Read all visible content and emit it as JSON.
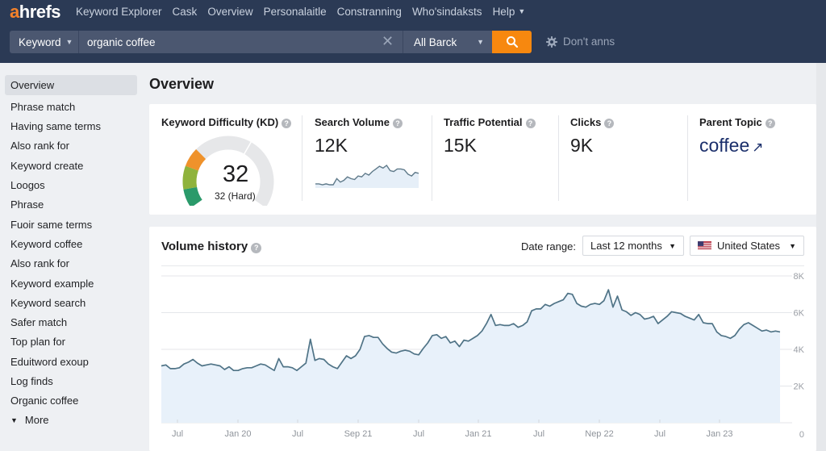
{
  "app": {
    "logo": {
      "accent": "a",
      "rest": "hrefs"
    },
    "nav": [
      {
        "label": "Keyword Explorer"
      },
      {
        "label": "Cask"
      },
      {
        "label": "Overview"
      },
      {
        "label": "Personalaitle"
      },
      {
        "label": "Constranning"
      },
      {
        "label": "Who'sindaksts"
      },
      {
        "label": "Help",
        "has_caret": true
      }
    ],
    "search": {
      "mode": "Keyword",
      "query": "organic coffee",
      "scope": "All Barck",
      "settings_label": "Don't anns"
    },
    "colors": {
      "topbar": "#2b3a55",
      "accent": "#f7880f",
      "link": "#1b2f6b",
      "line": "#4f7386",
      "fill": "#e8f1fa"
    }
  },
  "sidebar": {
    "items": [
      {
        "label": "Overview",
        "active": true
      },
      {
        "label": "Phrase match"
      },
      {
        "label": "Having same terms"
      },
      {
        "label": "Also rank for"
      },
      {
        "label": "Keyword create"
      },
      {
        "label": "Loogos"
      },
      {
        "label": "Phrase"
      },
      {
        "label": "Fuoir same terms"
      },
      {
        "label": "Keyword coffee"
      },
      {
        "label": "Also rank for"
      },
      {
        "label": "Keyword example"
      },
      {
        "label": "Keyword search"
      },
      {
        "label": "Safer match"
      },
      {
        "label": "Top plan for"
      },
      {
        "label": "Eduitword exoup"
      },
      {
        "label": "Log finds"
      },
      {
        "label": "Organic coffee"
      }
    ],
    "more_label": "More"
  },
  "main": {
    "title": "Overview",
    "metrics": {
      "kd": {
        "label": "Keyword Difficulty (KD)",
        "value": "32",
        "caption": "32 (Hard)",
        "score": 32
      },
      "search_volume": {
        "label": "Search Volume",
        "value": "12K"
      },
      "traffic_potential": {
        "label": "Traffic Potential",
        "value": "15K"
      },
      "clicks": {
        "label": "Clicks",
        "value": "9K"
      },
      "parent_topic": {
        "label": "Parent Topic",
        "value": "coffee",
        "arrow": "↗"
      }
    },
    "volume_history": {
      "title": "Volume history",
      "date_range_label": "Date range:",
      "date_range_value": "Last 12 months",
      "country": "United States"
    }
  },
  "chart_data": [
    {
      "type": "area",
      "title": "Volume history",
      "xlabel": "",
      "ylabel": "",
      "ylim": [
        0,
        8000
      ],
      "yticks": [
        0,
        2000,
        4000,
        6000,
        8000
      ],
      "ytick_labels": [
        "0",
        "2K",
        "4K",
        "6K",
        "8K"
      ],
      "xtick_labels": [
        "Jul",
        "Jan 20",
        "Jul",
        "Sep 21",
        "Jul",
        "Jan 21",
        "Jul",
        "Nep 22",
        "Jul",
        "Jan 23"
      ],
      "grid": true,
      "axis_side": "right",
      "series": [
        {
          "name": "Volume",
          "values": [
            3100,
            3150,
            2950,
            2950,
            3000,
            3200,
            3300,
            3450,
            3250,
            3100,
            3150,
            3200,
            3150,
            3100,
            2900,
            3050,
            2850,
            2850,
            2950,
            3000,
            3000,
            3100,
            3200,
            3150,
            3000,
            2850,
            3500,
            3050,
            3050,
            3000,
            2850,
            3050,
            3250,
            4550,
            3400,
            3500,
            3450,
            3200,
            3050,
            2950,
            3300,
            3650,
            3500,
            3650,
            4000,
            4700,
            4750,
            4650,
            4650,
            4300,
            4050,
            3850,
            3800,
            3900,
            3950,
            3900,
            3750,
            3700,
            4050,
            4350,
            4750,
            4800,
            4600,
            4700,
            4350,
            4450,
            4150,
            4500,
            4450,
            4600,
            4750,
            5000,
            5400,
            5900,
            5300,
            5350,
            5300,
            5300,
            5400,
            5200,
            5300,
            5500,
            6100,
            6200,
            6200,
            6450,
            6350,
            6500,
            6600,
            6700,
            7050,
            7000,
            6500,
            6350,
            6300,
            6450,
            6500,
            6450,
            6650,
            7250,
            6300,
            6900,
            6150,
            6050,
            5850,
            6000,
            5900,
            5650,
            5700,
            5800,
            5400,
            5600,
            5800,
            6050,
            6000,
            5950,
            5800,
            5700,
            5600,
            5900,
            5450,
            5400,
            5400,
            4950,
            4750,
            4700,
            4600,
            4750,
            5100,
            5350,
            5450,
            5300,
            5150,
            5000,
            5050,
            4950,
            5000,
            4950
          ]
        }
      ]
    },
    {
      "type": "line",
      "title": "Search Volume sparkline",
      "series": [
        {
          "name": "Search Volume",
          "values": [
            10,
            10,
            9,
            10,
            9,
            9,
            16,
            12,
            14,
            18,
            16,
            15,
            19,
            18,
            22,
            20,
            24,
            27,
            30,
            28,
            31,
            25,
            24,
            27,
            27,
            26,
            21,
            19,
            23,
            22
          ]
        }
      ]
    }
  ]
}
